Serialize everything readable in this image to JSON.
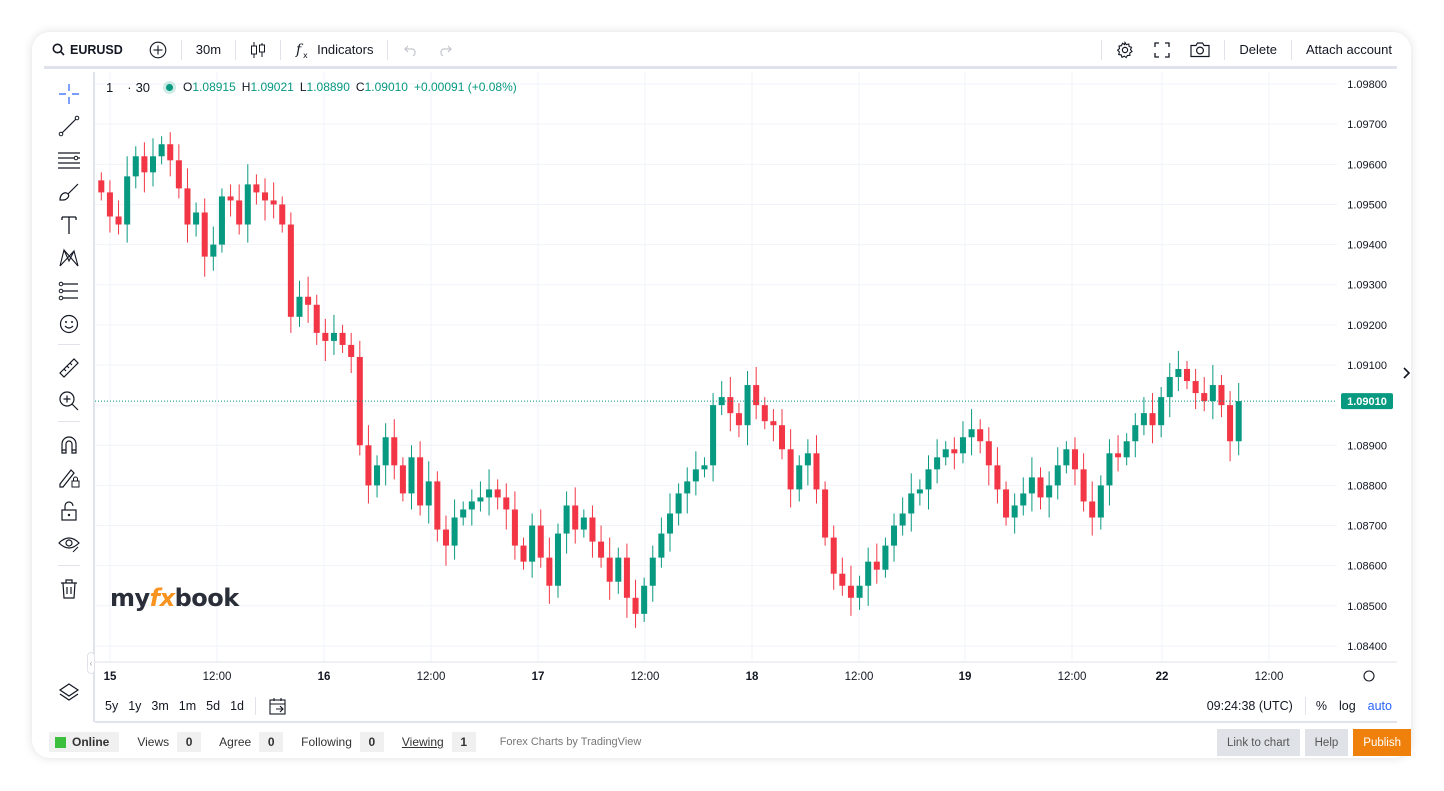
{
  "toolbar": {
    "symbol": "EURUSD",
    "interval": "30m",
    "indicators_label": "Indicators",
    "delete_label": "Delete",
    "attach_label": "Attach account"
  },
  "legend": {
    "symbol": "1",
    "interval": "30",
    "o_label": "O",
    "o_value": "1.08915",
    "h_label": "H",
    "h_value": "1.09021",
    "l_label": "L",
    "l_value": "1.08890",
    "c_label": "C",
    "c_value": "1.09010",
    "change": "+0.00091 (+0.08%)"
  },
  "chart_data": {
    "type": "candlestick",
    "y_ticks": [
      "1.09800",
      "1.09700",
      "1.09600",
      "1.09500",
      "1.09400",
      "1.09300",
      "1.09200",
      "1.09100",
      "1.09000",
      "1.08900",
      "1.08800",
      "1.08700",
      "1.08600",
      "1.08500",
      "1.08400"
    ],
    "ylim": [
      1.0836,
      1.0983
    ],
    "x_ticks": [
      "15",
      "12:00",
      "16",
      "12:00",
      "17",
      "12:00",
      "18",
      "12:00",
      "19",
      "12:00",
      "22",
      "12:00"
    ],
    "last_price": "1.09010",
    "up_color": "#089981",
    "down_color": "#f23645",
    "closes": [
      1.0953,
      1.0947,
      1.0945,
      1.0957,
      1.0962,
      1.0958,
      1.0962,
      1.0965,
      1.0961,
      1.0954,
      1.0945,
      1.0948,
      1.0937,
      1.094,
      1.0952,
      1.0951,
      1.0945,
      1.0955,
      1.0953,
      1.0951,
      1.095,
      1.0945,
      1.0922,
      1.0927,
      1.0925,
      1.0918,
      1.0916,
      1.0918,
      1.0915,
      1.0912,
      1.089,
      1.088,
      1.0885,
      1.0892,
      1.0885,
      1.0878,
      1.0887,
      1.0875,
      1.0881,
      1.0869,
      1.0865,
      1.0872,
      1.0874,
      1.0876,
      1.0877,
      1.0879,
      1.0877,
      1.0874,
      1.0865,
      1.0861,
      1.087,
      1.0862,
      1.0855,
      1.0868,
      1.0875,
      1.0869,
      1.0872,
      1.0866,
      1.0862,
      1.0856,
      1.0862,
      1.0852,
      1.0848,
      1.0855,
      1.0862,
      1.0868,
      1.0873,
      1.0878,
      1.0881,
      1.0884,
      1.0885,
      1.09,
      1.0902,
      1.0898,
      1.0895,
      1.0905,
      1.09,
      1.0896,
      1.0895,
      1.0889,
      1.0879,
      1.0885,
      1.0888,
      1.0879,
      1.0867,
      1.0858,
      1.0855,
      1.0852,
      1.0855,
      1.0861,
      1.0859,
      1.0865,
      1.087,
      1.0873,
      1.0878,
      1.0879,
      1.0884,
      1.0887,
      1.0889,
      1.0888,
      1.0892,
      1.0894,
      1.0891,
      1.0885,
      1.0879,
      1.0872,
      1.0875,
      1.0878,
      1.0882,
      1.0877,
      1.088,
      1.0885,
      1.0889,
      1.0884,
      1.0876,
      1.0872,
      1.088,
      1.0888,
      1.0887,
      1.0891,
      1.0895,
      1.0898,
      1.0895,
      1.0902,
      1.0907,
      1.0909,
      1.0906,
      1.0903,
      1.0901,
      1.0905,
      1.09,
      1.0891,
      1.0901
    ]
  },
  "range": [
    "5y",
    "1y",
    "3m",
    "1m",
    "5d",
    "1d"
  ],
  "clock": "09:24:38 (UTC)",
  "scale": {
    "pct": "%",
    "log": "log",
    "auto": "auto"
  },
  "watermark": {
    "a": "my",
    "b": "fx",
    "c": "book"
  },
  "status": {
    "online": "Online",
    "views_label": "Views",
    "views": "0",
    "agree_label": "Agree",
    "agree": "0",
    "following_label": "Following",
    "following": "0",
    "viewing_label": "Viewing",
    "viewing": "1",
    "credit": "Forex Charts by TradingView",
    "link_label": "Link to chart",
    "help_label": "Help",
    "publish_label": "Publish"
  },
  "colors": {
    "accent": "#2962ff",
    "up": "#089981",
    "down": "#f23645",
    "publish": "#f0800c"
  }
}
